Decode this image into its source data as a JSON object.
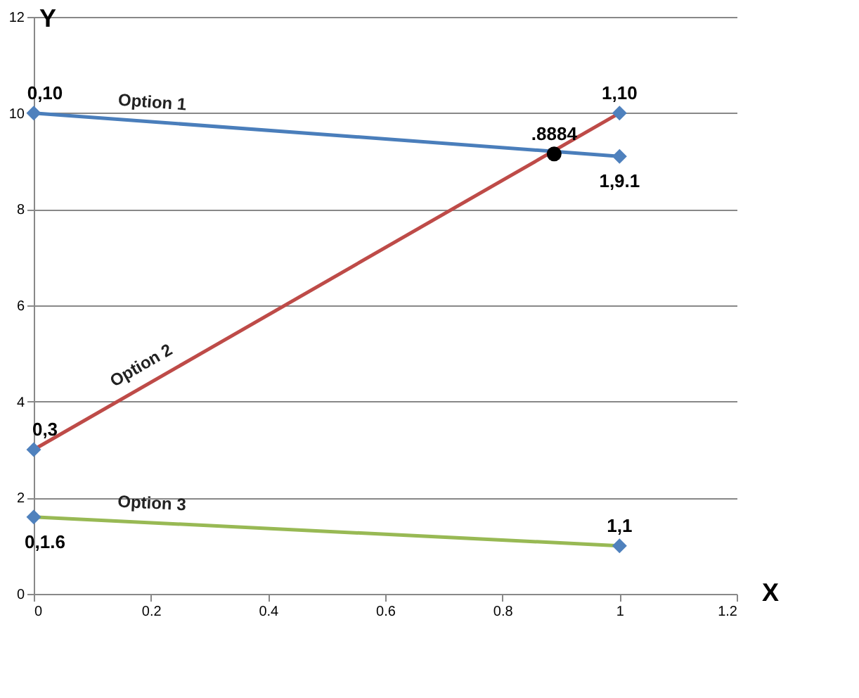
{
  "chart_data": {
    "type": "line",
    "xlabel": "X",
    "ylabel": "Y",
    "xlim": [
      0,
      1.2
    ],
    "xticks": [
      0,
      0.2,
      0.4,
      0.6,
      0.8,
      1,
      1.2
    ],
    "ylim": [
      0,
      12
    ],
    "yticks": [
      0,
      2,
      4,
      6,
      8,
      10,
      12
    ],
    "grid": "y",
    "series": [
      {
        "name": "Option 1",
        "color": "#4a7ebb",
        "x": [
          0,
          1
        ],
        "values": [
          10,
          9.1
        ],
        "marker": "none"
      },
      {
        "name": "Option 2",
        "color": "#be4b48",
        "x": [
          0,
          1
        ],
        "values": [
          3,
          10
        ],
        "marker": "none"
      },
      {
        "name": "Option 3",
        "color": "#98b954",
        "x": [
          0,
          1
        ],
        "values": [
          1.6,
          1
        ],
        "marker": "none"
      },
      {
        "type": "scatter",
        "color": "#4f81bd",
        "x": [
          0,
          1,
          0,
          1,
          0,
          1
        ],
        "values": [
          10,
          9.1,
          3,
          10,
          1.6,
          1
        ],
        "marker": "diamond"
      },
      {
        "type": "scatter",
        "color": "#000000",
        "x": [
          0.8884
        ],
        "values": [
          9.15
        ],
        "marker": "circle"
      }
    ],
    "annotations": [
      {
        "text": "0,10",
        "x": 0,
        "y": 10
      },
      {
        "text": "1,10",
        "x": 1,
        "y": 10
      },
      {
        "text": "1,9.1",
        "x": 1,
        "y": 9.1
      },
      {
        "text": "0,3",
        "x": 0,
        "y": 3
      },
      {
        "text": "0,1.6",
        "x": 0,
        "y": 1.6
      },
      {
        "text": "1,1",
        "x": 1,
        "y": 1
      },
      {
        "text": ".8884",
        "x": 0.8884,
        "y": 9.15
      }
    ]
  }
}
